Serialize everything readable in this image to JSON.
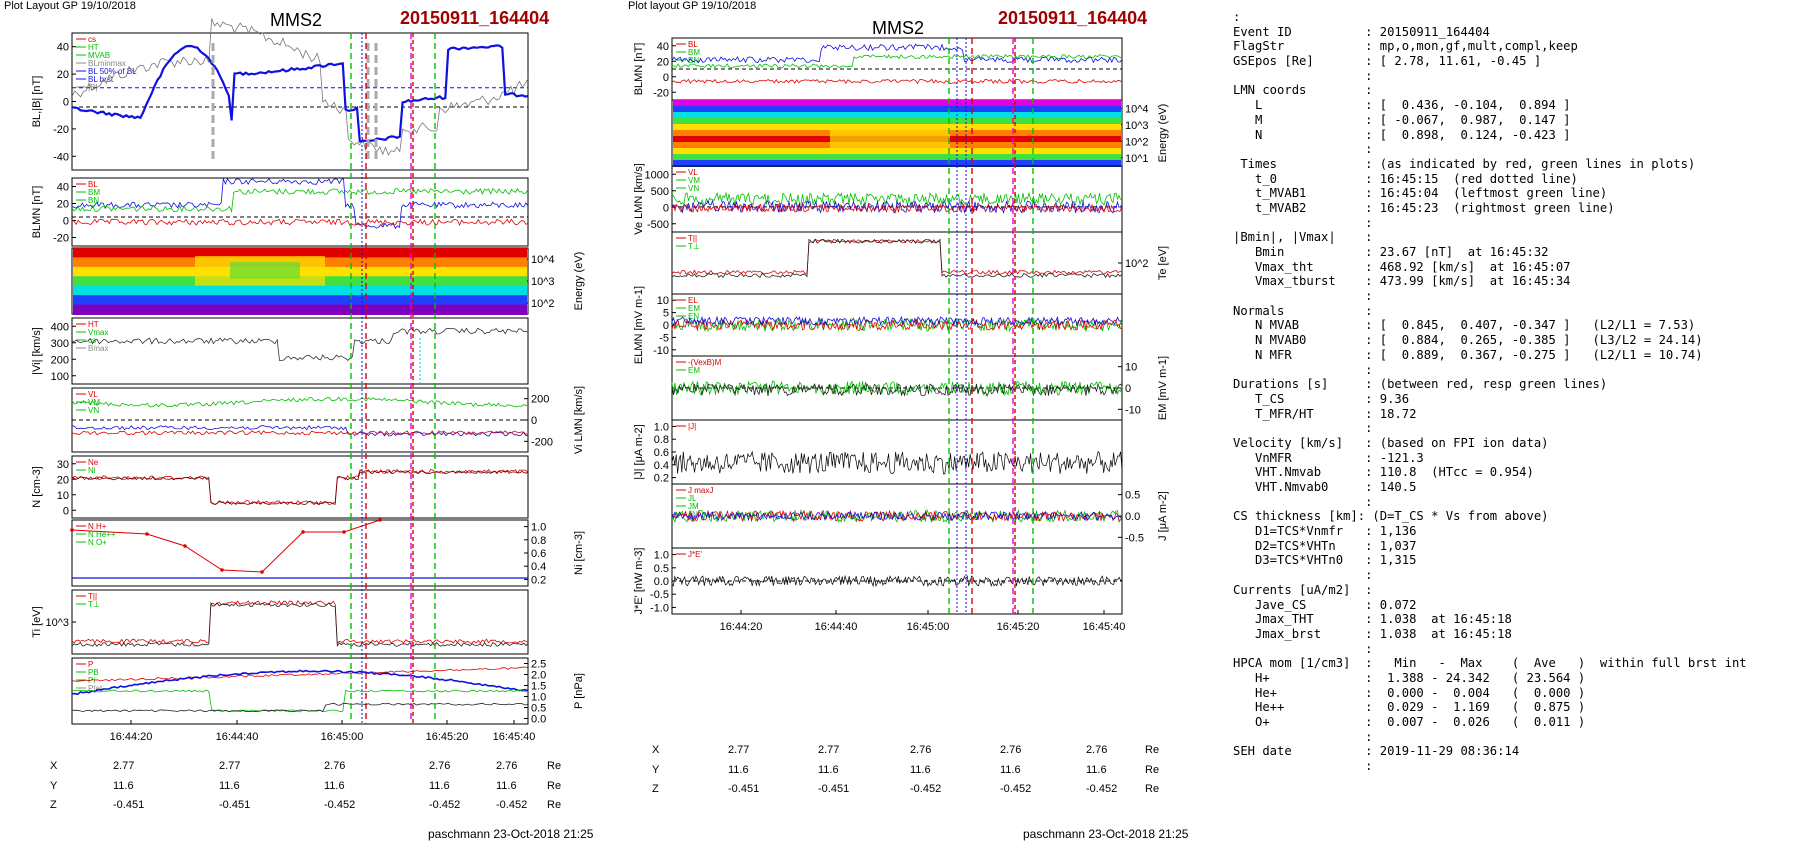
{
  "left_panel": {
    "header": "Plot Layout GP 19/10/2018",
    "spacecraft": "MMS2",
    "event": "20150911_164404",
    "footer": "paschmann 23-Oct-2018 21:25",
    "time_ticks": [
      "16:44:20",
      "16:44:40",
      "16:45:00",
      "16:45:20",
      "16:45:40"
    ],
    "coords": {
      "X": [
        "2.77",
        "2.77",
        "2.76",
        "2.76",
        "2.76"
      ],
      "Y": [
        "11.6",
        "11.6",
        "11.6",
        "11.6",
        "11.6"
      ],
      "Z": [
        "-0.451",
        "-0.451",
        "-0.452",
        "-0.452",
        "-0.452"
      ],
      "unit": "Re"
    },
    "panels": [
      {
        "id": "bl",
        "ylabel": "BL,|B| [nT]",
        "side": "left",
        "ticks": [
          "40",
          "20",
          "0",
          "-20",
          "-40"
        ],
        "legend": [
          "cs",
          "HT",
          "MVAB",
          "BLminmax",
          "BL 50% of BL",
          "BL brst",
          "|B|"
        ]
      },
      {
        "id": "blmn",
        "ylabel": "BLMN [nT]",
        "side": "left",
        "ticks": [
          "40",
          "20",
          "0",
          "-20"
        ],
        "legend": [
          "BL",
          "BM",
          "BN"
        ]
      },
      {
        "id": "spec",
        "ylabel": "Energy (eV)",
        "side": "right",
        "ticks": [
          "10^4",
          "10^3",
          "10^2"
        ]
      },
      {
        "id": "vi",
        "ylabel": "|Vi| [km/s]",
        "side": "left",
        "ticks": [
          "400",
          "300",
          "200",
          "100"
        ],
        "legend": [
          "HT",
          "Vmax",
          "cs",
          "Bmax"
        ]
      },
      {
        "id": "vilmn",
        "ylabel": "Vi LMN [km/s]",
        "side": "right",
        "ticks": [
          "200",
          "0",
          "-200"
        ],
        "legend": [
          "VL",
          "VM",
          "VN"
        ]
      },
      {
        "id": "n",
        "ylabel": "N [cm-3]",
        "side": "left",
        "ticks": [
          "30",
          "20",
          "10",
          "0"
        ],
        "legend": [
          "Ne",
          "Ni"
        ]
      },
      {
        "id": "ni",
        "ylabel": "Ni [cm-3]",
        "side": "right",
        "ticks": [
          "1.0",
          "0.8",
          "0.6",
          "0.4",
          "0.2"
        ],
        "legend": [
          "N H+",
          "N He++",
          "N O+"
        ]
      },
      {
        "id": "ti",
        "ylabel": "Ti [eV]",
        "side": "left",
        "ticks": [
          "10^3"
        ],
        "legend": [
          "T||",
          "T⊥"
        ]
      },
      {
        "id": "p",
        "ylabel": "P [nPa]",
        "side": "right",
        "ticks": [
          "2.5",
          "2.0",
          "1.5",
          "1.0",
          "0.5",
          "0.0"
        ],
        "legend": [
          "P",
          "PB",
          "Pi",
          "Ptot"
        ]
      }
    ]
  },
  "middle_panel": {
    "header": "Plot layout GP 19/10/2018",
    "spacecraft": "MMS2",
    "event": "20150911_164404",
    "footer": "paschmann 23-Oct-2018 21:25",
    "time_ticks": [
      "16:44:20",
      "16:44:40",
      "16:45:00",
      "16:45:20",
      "16:45:40"
    ],
    "coords": {
      "X": [
        "2.77",
        "2.77",
        "2.76",
        "2.76",
        "2.76"
      ],
      "Y": [
        "11.6",
        "11.6",
        "11.6",
        "11.6",
        "11.6"
      ],
      "Z": [
        "-0.451",
        "-0.451",
        "-0.452",
        "-0.452",
        "-0.452"
      ],
      "unit": "Re"
    },
    "panels": [
      {
        "id": "blmn",
        "ylabel": "BLMN [nT]",
        "side": "left",
        "ticks": [
          "40",
          "20",
          "0",
          "-20"
        ],
        "legend": [
          "BL",
          "BM",
          "BN"
        ]
      },
      {
        "id": "espec",
        "ylabel": "Energy (eV)",
        "side": "right",
        "ticks": [
          "10^4",
          "10^3",
          "10^2",
          "10^1"
        ]
      },
      {
        "id": "ve",
        "ylabel": "Ve LMN [km/s]",
        "side": "left",
        "ticks": [
          "1000",
          "500",
          "0",
          "-500"
        ],
        "legend": [
          "VL",
          "VM",
          "VN"
        ]
      },
      {
        "id": "te",
        "ylabel": "Te [eV]",
        "side": "right",
        "ticks": [
          "10^2"
        ],
        "legend": [
          "T||",
          "T⊥"
        ]
      },
      {
        "id": "elmn",
        "ylabel": "ELMN [mV m-1]",
        "side": "left",
        "ticks": [
          "10",
          "5",
          "0",
          "-5",
          "-10"
        ],
        "legend": [
          "EL",
          "EM",
          "EN"
        ]
      },
      {
        "id": "em",
        "ylabel": "EM [mV m-1]",
        "side": "right",
        "ticks": [
          "10",
          "0",
          "-10"
        ],
        "legend": [
          "-(VexB)M",
          "EM"
        ]
      },
      {
        "id": "j",
        "ylabel": "|J| [μA m-2]",
        "side": "left",
        "ticks": [
          "1.0",
          "0.8",
          "0.6",
          "0.4",
          "0.2"
        ],
        "legend": [
          "|J|"
        ]
      },
      {
        "id": "jlmn",
        "ylabel": "J [μA m-2]",
        "side": "right",
        "ticks": [
          "0.5",
          "0.0",
          "-0.5"
        ],
        "legend": [
          "J maxJ",
          "JL",
          "JM",
          "JN"
        ]
      },
      {
        "id": "je",
        "ylabel": "J*E' [nW m-3]",
        "side": "left",
        "ticks": [
          "1.0",
          "0.5",
          "0.0",
          "-0.5",
          "-1.0"
        ],
        "legend": [
          "J*E'"
        ]
      }
    ]
  },
  "info_lines": [
    ":",
    "Event ID          : 20150911_164404",
    "FlagStr           : mp,o,mon,gf,mult,compl,keep",
    "GSEpos [Re]       : [ 2.78, 11.61, -0.45 ]",
    "                  :",
    "LMN coords        :",
    "   L              : [  0.436, -0.104,  0.894 ]",
    "   M              : [ -0.067,  0.987,  0.147 ]",
    "   N              : [  0.898,  0.124, -0.423 ]",
    "                  :",
    " Times            : (as indicated by red, green lines in plots)",
    "   t_0            : 16:45:15  (red dotted line)",
    "   t_MVAB1        : 16:45:04  (leftmost green line)",
    "   t_MVAB2        : 16:45:23  (rightmost green line)",
    "                  :",
    "|Bmin|, |Vmax|    :",
    "   Bmin           : 23.67 [nT]  at 16:45:32",
    "   Vmax_tht       : 468.92 [km/s]  at 16:45:07",
    "   Vmax_tburst    : 473.99 [km/s]  at 16:45:34",
    "                  :",
    "Normals           :",
    "   N MVAB         : [  0.845,  0.407, -0.347 ]   (L2/L1 = 7.53)",
    "   N MVAB0        : [  0.884,  0.265, -0.385 ]   (L3/L2 = 24.14)",
    "   N MFR          : [  0.889,  0.367, -0.275 ]   (L2/L1 = 10.74)",
    "                  :",
    "Durations [s]     : (between red, resp green lines)",
    "   T_CS           : 9.36",
    "   T_MFR/HT       : 18.72",
    "                  :",
    "Velocity [km/s]   : (based on FPI ion data)",
    "   VnMFR          : -121.3",
    "   VHT.Nmvab      : 110.8  (HTcc = 0.954)",
    "   VHT.Nmvab0     : 140.5",
    "                  :",
    "CS thickness [km]: (D=T_CS * Vs from above)",
    "   D1=TCS*Vnmfr   : 1,136",
    "   D2=TCS*VHTn    : 1,037",
    "   D3=TCS*VHTn0   : 1,315",
    "                  :",
    "Currents [uA/m2]  :",
    "   Jave_CS        : 0.072",
    "   Jmax_THT       : 1.038  at 16:45:18",
    "   Jmax_brst      : 1.038  at 16:45:18",
    "                  :",
    "HPCA mom [1/cm3]  :   Min   -  Max    (  Ave   )  within full brst int",
    "   H+             :  1.388 - 24.342   ( 23.564 )",
    "   He+            :  0.000 -  0.004   (  0.000 )",
    "   He++           :  0.029 -  1.169   (  0.875 )",
    "   O+             :  0.007 -  0.026   (  0.011 )",
    "                  :",
    "SEH date          : 2019-11-29 08:36:14",
    "                  :"
  ],
  "colors": {
    "event": "#a00000",
    "blue": "#1010e0",
    "red": "#e00000",
    "green": "#00c000",
    "black": "#000000",
    "magenta": "#e000e0"
  }
}
